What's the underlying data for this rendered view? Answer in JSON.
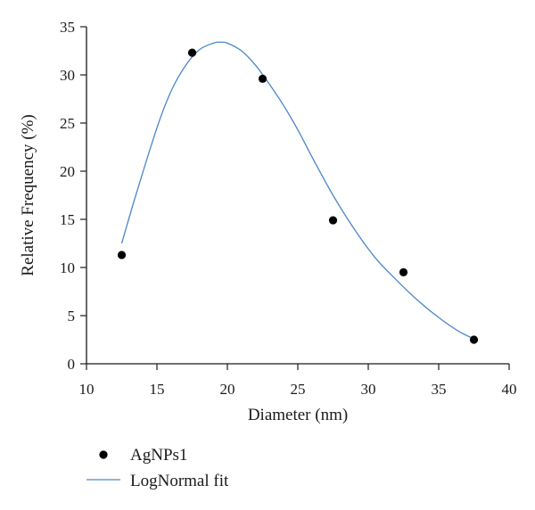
{
  "chart_data": {
    "type": "scatter",
    "title": "",
    "xlabel": "Diameter (nm)",
    "ylabel": "Relative Frequency (%)",
    "xlim": [
      10,
      40
    ],
    "ylim": [
      0,
      35
    ],
    "xticks": [
      "10",
      "15",
      "20",
      "25",
      "30",
      "35",
      "40"
    ],
    "yticks": [
      "0",
      "5",
      "10",
      "15",
      "20",
      "25",
      "30",
      "35"
    ],
    "grid": false,
    "legend_position": "bottom-left, below plot",
    "series": [
      {
        "name": "AgNPs1",
        "kind": "scatter",
        "color": "#000000",
        "x": [
          12.5,
          17.5,
          22.5,
          27.5,
          32.5,
          37.5
        ],
        "y": [
          11.3,
          32.3,
          29.6,
          14.9,
          9.5,
          2.5
        ]
      },
      {
        "name": "LogNormal fit",
        "kind": "line",
        "color": "#4a86c8",
        "x": [
          12.5,
          13.5,
          15.0,
          16.0,
          17.0,
          18.0,
          19.0,
          19.5,
          20.0,
          21.0,
          22.0,
          23.0,
          24.0,
          25.0,
          26.0,
          27.5,
          29.0,
          30.5,
          32.0,
          33.5,
          35.0,
          36.5,
          37.5
        ],
        "y": [
          12.5,
          17.5,
          24.5,
          28.3,
          30.9,
          32.6,
          33.3,
          33.4,
          33.3,
          32.5,
          31.0,
          29.0,
          26.8,
          24.3,
          21.5,
          17.5,
          14.0,
          11.0,
          8.7,
          6.6,
          4.8,
          3.3,
          2.6
        ]
      }
    ]
  }
}
